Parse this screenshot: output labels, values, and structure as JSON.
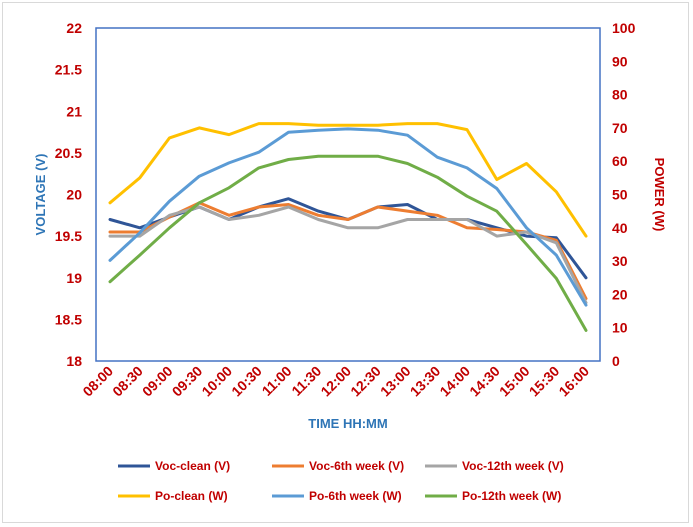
{
  "chart_data": {
    "type": "line",
    "title": "",
    "xlabel": "TIME HH:MM",
    "ylabel_left": "VOLTAGE (V)",
    "ylabel_right": "POWER (W)",
    "categories": [
      "08:00",
      "08:30",
      "09:00",
      "09:30",
      "10:00",
      "10:30",
      "11:00",
      "11:30",
      "12:00",
      "12:30",
      "13:00",
      "13:30",
      "14:00",
      "14:30",
      "15:00",
      "15:30",
      "16:00"
    ],
    "ylim_left": [
      18,
      22
    ],
    "ylim_right": [
      0,
      100
    ],
    "yticks_left": [
      "18",
      "18.5",
      "19",
      "19.5",
      "20",
      "20.5",
      "21",
      "21.5",
      "22"
    ],
    "yticks_right": [
      "0",
      "10",
      "20",
      "30",
      "40",
      "50",
      "60",
      "70",
      "80",
      "90",
      "100"
    ],
    "grid": false,
    "legend_position": "bottom",
    "colors": {
      "left_axis": "#2e75b6",
      "right_axis": "#c00000",
      "x_ticks": "#c00000",
      "x_title": "#2e75b6",
      "plot_border": "#4472c4"
    },
    "series": [
      {
        "name": "Voc-clean (V)",
        "axis": "left",
        "color": "#2f5597",
        "values": [
          19.7,
          19.6,
          19.73,
          19.85,
          19.7,
          19.85,
          19.95,
          19.8,
          19.7,
          19.85,
          19.88,
          19.7,
          19.7,
          19.6,
          19.5,
          19.48,
          19.0
        ]
      },
      {
        "name": "Voc-6th week (V)",
        "axis": "left",
        "color": "#ed7d31",
        "values": [
          19.55,
          19.55,
          19.73,
          19.9,
          19.75,
          19.85,
          19.88,
          19.75,
          19.7,
          19.85,
          19.8,
          19.75,
          19.6,
          19.58,
          19.55,
          19.45,
          18.75
        ]
      },
      {
        "name": "Voc-12th week (V)",
        "axis": "left",
        "color": "#a5a5a5",
        "values": [
          19.5,
          19.5,
          19.75,
          19.85,
          19.7,
          19.75,
          19.85,
          19.7,
          19.6,
          19.6,
          19.7,
          19.7,
          19.7,
          19.5,
          19.55,
          19.42,
          18.7
        ]
      },
      {
        "name": "Po-clean (W)",
        "axis": "right",
        "color": "#ffc000",
        "values": [
          47.5,
          55,
          67,
          70,
          68,
          71.3,
          71.3,
          70.8,
          70.8,
          70.8,
          71.3,
          71.3,
          69.5,
          54.5,
          59.3,
          50.8,
          37.5
        ]
      },
      {
        "name": "Po-6th week (W)",
        "axis": "right",
        "color": "#5b9bd5",
        "values": [
          30.2,
          38.5,
          48,
          55.5,
          59.5,
          62.7,
          68.7,
          69.3,
          69.7,
          69.3,
          67.8,
          61.2,
          58,
          51.8,
          40,
          31.8,
          16.8
        ]
      },
      {
        "name": "Po-12th week (W)",
        "axis": "right",
        "color": "#70ad47",
        "values": [
          23.8,
          31.8,
          40,
          47.5,
          52,
          58,
          60.5,
          61.5,
          61.5,
          61.5,
          59.3,
          55.2,
          49.5,
          45,
          35,
          24.8,
          9.2
        ]
      }
    ]
  }
}
